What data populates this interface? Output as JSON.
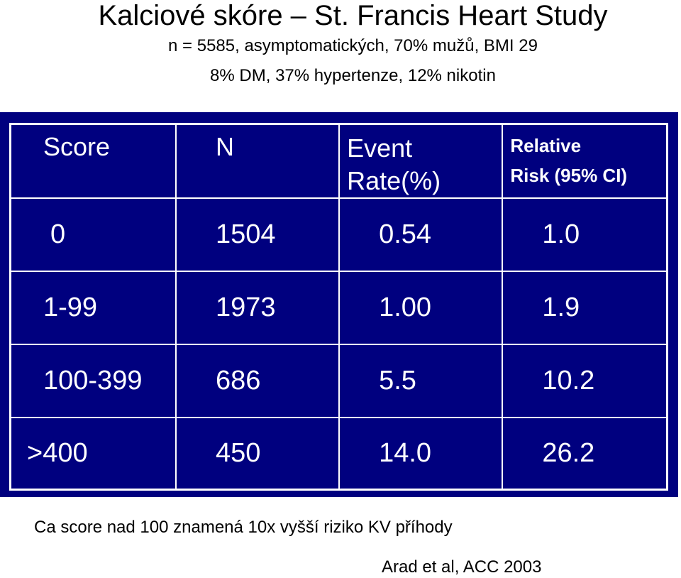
{
  "slide": {
    "title": "Kalciové skóre – St. Francis Heart Study",
    "subtitle_line1": "n = 5585, asymptomatických, 70% mužů, BMI 29",
    "subtitle_line2": "8% DM, 37% hypertenze, 12% nikotin"
  },
  "table": {
    "headers": {
      "score": "Score",
      "n": "N",
      "event_line1": "Event",
      "event_line2": "Rate(%)",
      "rr_line1": "Relative",
      "rr_line2": "Risk (95% CI)"
    },
    "rows": [
      {
        "score": "0",
        "n": "1504",
        "event_rate": "0.54",
        "relative_risk": "1.0"
      },
      {
        "score": "1-99",
        "n": "1973",
        "event_rate": "1.00",
        "relative_risk": "1.9"
      },
      {
        "score": "100-399",
        "n": "686",
        "event_rate": "5.5",
        "relative_risk": "10.2"
      },
      {
        "score": ">400",
        "n": "450",
        "event_rate": "14.0",
        "relative_risk": "26.2"
      }
    ]
  },
  "footer": {
    "note": "Ca score nad 100 znamená 10x vyšší riziko KV příhody",
    "citation": "Arad et al, ACC 2003"
  },
  "colors": {
    "table_background": "#00007f",
    "table_text": "#ffffff",
    "grid_lines": "#ffffff"
  }
}
